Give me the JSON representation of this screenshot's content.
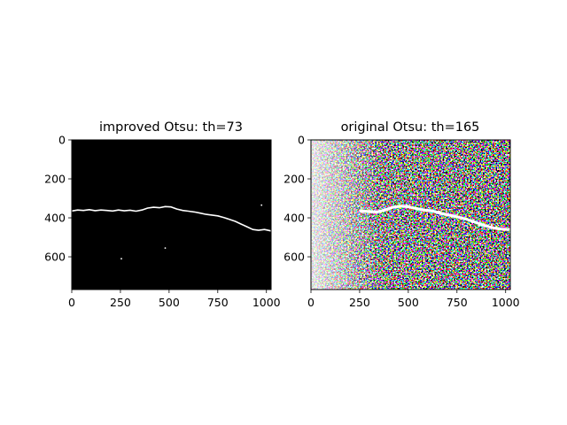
{
  "chart_data": [
    {
      "type": "image",
      "title": "improved Otsu: th=73",
      "xlim": [
        0,
        1024
      ],
      "ylim": [
        768,
        0
      ],
      "x_ticks": [
        0,
        250,
        500,
        750,
        1000
      ],
      "y_ticks": [
        0,
        200,
        400,
        600
      ],
      "background_color": "#000000",
      "foreground_color": "#ffffff",
      "crack_path": [
        [
          0,
          365
        ],
        [
          30,
          360
        ],
        [
          60,
          362
        ],
        [
          90,
          358
        ],
        [
          120,
          363
        ],
        [
          150,
          360
        ],
        [
          180,
          362
        ],
        [
          210,
          365
        ],
        [
          240,
          360
        ],
        [
          270,
          364
        ],
        [
          300,
          361
        ],
        [
          330,
          366
        ],
        [
          360,
          360
        ],
        [
          390,
          350
        ],
        [
          420,
          346
        ],
        [
          450,
          348
        ],
        [
          480,
          342
        ],
        [
          510,
          344
        ],
        [
          540,
          355
        ],
        [
          570,
          362
        ],
        [
          600,
          366
        ],
        [
          630,
          370
        ],
        [
          660,
          376
        ],
        [
          690,
          382
        ],
        [
          720,
          386
        ],
        [
          750,
          390
        ],
        [
          780,
          398
        ],
        [
          810,
          408
        ],
        [
          840,
          418
        ],
        [
          870,
          432
        ],
        [
          900,
          446
        ],
        [
          930,
          460
        ],
        [
          960,
          464
        ],
        [
          990,
          460
        ],
        [
          1024,
          467
        ]
      ],
      "specks": [
        [
          255,
          610
        ],
        [
          480,
          555
        ],
        [
          975,
          335
        ]
      ]
    },
    {
      "type": "image",
      "title": "original Otsu: th=165",
      "xlim": [
        0,
        1024
      ],
      "ylim": [
        768,
        0
      ],
      "x_ticks": [
        0,
        250,
        500,
        750,
        1000
      ],
      "y_ticks": [
        0,
        200,
        400,
        600
      ],
      "background_color": "#000000",
      "foreground_color": "#ffffff",
      "crack_path": [
        [
          250,
          365
        ],
        [
          300,
          368
        ],
        [
          340,
          370
        ],
        [
          380,
          360
        ],
        [
          420,
          346
        ],
        [
          460,
          340
        ],
        [
          500,
          343
        ],
        [
          540,
          352
        ],
        [
          580,
          360
        ],
        [
          620,
          364
        ],
        [
          660,
          376
        ],
        [
          700,
          384
        ],
        [
          740,
          392
        ],
        [
          780,
          402
        ],
        [
          820,
          414
        ],
        [
          860,
          428
        ],
        [
          900,
          442
        ],
        [
          940,
          452
        ],
        [
          980,
          458
        ],
        [
          1024,
          460
        ]
      ]
    }
  ]
}
